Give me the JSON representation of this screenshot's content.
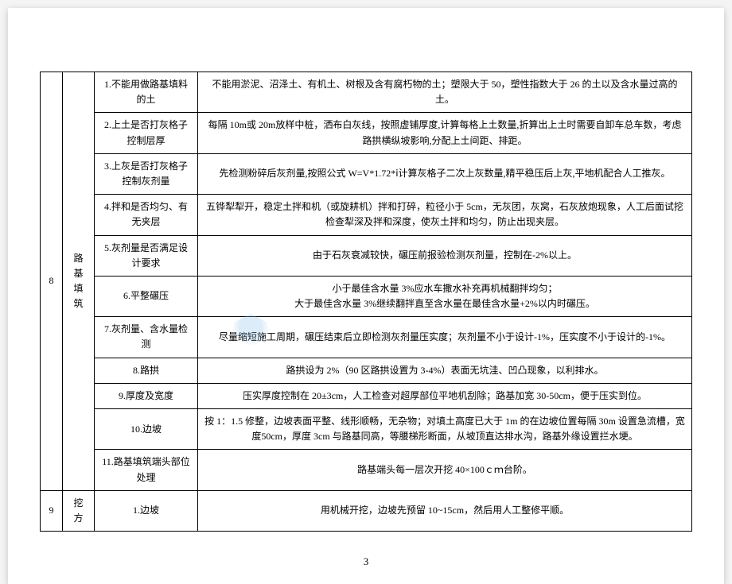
{
  "pageNumber": "3",
  "rows": [
    {
      "num": "8",
      "cat": "路基\n填筑",
      "catRowspan": 11,
      "item": "1.不能用做路基填料的土",
      "desc": "不能用淤泥、沼泽土、有机土、树根及含有腐朽物的土；塑限大于 50，塑性指数大于 26 的土以及含水量过高的土。"
    },
    {
      "item": "2.上土是否打灰格子控制层厚",
      "desc": "每隔 10m或 20m放样中桩，洒布白灰线，按照虚铺厚度,计算每格上土数量,折算出上土时需要自卸车总车数，考虑路拱横纵坡影响,分配上土间距、排距。"
    },
    {
      "item": "3.上灰是否打灰格子控制灰剂量",
      "desc": "先检测粉碎后灰剂量,按照公式 W=V*1.72*ⅰ计算灰格子二次上灰数量,精平稳压后上灰,平地机配合人工推灰。"
    },
    {
      "item": "4.拌和是否均匀、有无夹层",
      "desc": "五铧犁犁开，稳定土拌和机（或旋耕机）拌和打碎，粒径小于 5cm，无灰团，灰窝，石灰放炮现象，人工后面试挖检查犁深及拌和深度，使灰土拌和均匀，防止出现夹层。"
    },
    {
      "item": "5.灰剂量是否满足设计要求",
      "desc": "由于石灰衰减较快，碾压前报验检测灰剂量，控制在-2%以上。"
    },
    {
      "item": "6.平整碾压",
      "desc": "小于最佳含水量 3%应水车撒水补充再机械翻拌均匀；\n大于最佳含水量 3%继续翻拌直至含水量在最佳含水量+2%以内时碾压。"
    },
    {
      "item": "7.灰剂量、含水量检测",
      "desc": "尽量缩短施工周期，碾压结束后立即检测灰剂量压实度；灰剂量不小于设计-1%，压实度不小于设计的-1%。"
    },
    {
      "item": "8.路拱",
      "desc": "路拱设为 2%（90 区路拱设置为 3-4%）表面无坑洼、凹凸现象，以利排水。"
    },
    {
      "item": "9.厚度及宽度",
      "desc": "压实厚度控制在 20±3cm，人工检查对超厚部位平地机刮除；路基加宽 30-50cm，便于压实到位。"
    },
    {
      "item": "10.边坡",
      "desc": "按 1：1.5 修整，边坡表面平整、线形顺畅，无杂物；对填土高度已大于 1m 的在边坡位置每隔 30m 设置急流槽，宽度50cm，厚度 3cm 与路基同高，等腰梯形断面，从坡顶直达排水沟，路基外缘设置拦水埂。"
    },
    {
      "item": "11.路基填筑端头部位处理",
      "desc": "路基端头每一层次开挖 40×100ｃｍ台阶。"
    },
    {
      "num": "9",
      "cat": "挖方",
      "catRowspan": 1,
      "item": "1.边坡",
      "desc": "用机械开挖，边坡先预留 10~15cm，然后用人工整修平顺。"
    }
  ]
}
